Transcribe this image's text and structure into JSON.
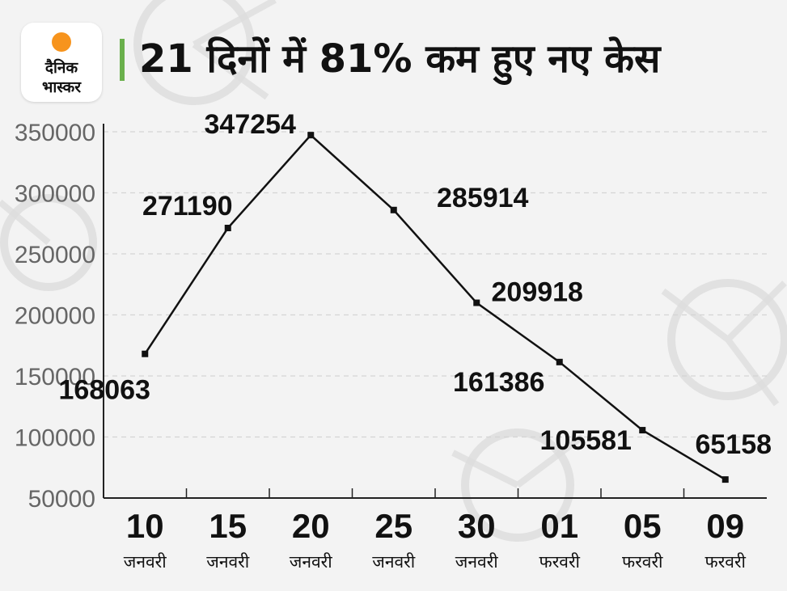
{
  "logo": {
    "line1": "दैनिक",
    "line2": "भास्कर"
  },
  "title": "21 दिनों में 81% कम हुए नए केस",
  "colors": {
    "accent": "#6ab04c",
    "logo_sun": "#f7941d",
    "line": "#111111",
    "grid": "#d4d4d4"
  },
  "chart_data": {
    "type": "line",
    "title": "21 दिनों में 81% कम हुए नए केस",
    "categories": [
      [
        "10",
        "जनवरी"
      ],
      [
        "15",
        "जनवरी"
      ],
      [
        "20",
        "जनवरी"
      ],
      [
        "25",
        "जनवरी"
      ],
      [
        "30",
        "जनवरी"
      ],
      [
        "01",
        "फरवरी"
      ],
      [
        "05",
        "फरवरी"
      ],
      [
        "09",
        "फरवरी"
      ]
    ],
    "values": [
      168063,
      271190,
      347254,
      285914,
      209918,
      161386,
      105581,
      65158
    ],
    "yticks": [
      50000,
      100000,
      150000,
      200000,
      250000,
      300000,
      350000
    ],
    "ylim": [
      50000,
      350000
    ],
    "grid": true,
    "dashed_grid": true,
    "data_labels": true
  }
}
